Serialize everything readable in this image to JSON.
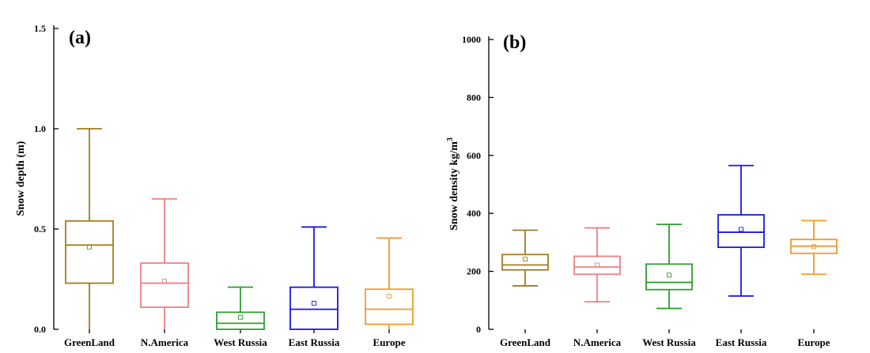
{
  "chart_data": [
    {
      "type": "box",
      "panel_label": "(a)",
      "ylabel": "Snow depth (m)",
      "ylim": [
        0,
        1.5
      ],
      "yticks": [
        "0.0",
        "0.5",
        "1.0",
        "1.5"
      ],
      "categories": [
        "GreenLand",
        "N.America",
        "West Russia",
        "East Russia",
        "Europe"
      ],
      "boxes": [
        {
          "category": "GreenLand",
          "whisker_low": 0.0,
          "q1": 0.23,
          "median": 0.42,
          "q3": 0.54,
          "whisker_high": 1.0,
          "mean": 0.41,
          "color": "#a07d1c"
        },
        {
          "category": "N.America",
          "whisker_low": 0.0,
          "q1": 0.11,
          "median": 0.23,
          "q3": 0.33,
          "whisker_high": 0.65,
          "mean": 0.24,
          "color": "#ee7f84"
        },
        {
          "category": "West Russia",
          "whisker_low": 0.0,
          "q1": 0.0,
          "median": 0.03,
          "q3": 0.085,
          "whisker_high": 0.21,
          "mean": 0.06,
          "color": "#2d9e2d"
        },
        {
          "category": "East Russia",
          "whisker_low": 0.0,
          "q1": 0.0,
          "median": 0.1,
          "q3": 0.21,
          "whisker_high": 0.51,
          "mean": 0.13,
          "color": "#1818e0"
        },
        {
          "category": "Europe",
          "whisker_low": 0.0,
          "q1": 0.025,
          "median": 0.1,
          "q3": 0.2,
          "whisker_high": 0.455,
          "mean": 0.165,
          "color": "#f39a2c"
        }
      ]
    },
    {
      "type": "box",
      "panel_label": "(b)",
      "ylabel": "Snow density kg/m",
      "ylabel_sup": "3",
      "ylim": [
        0,
        1000
      ],
      "yticks": [
        "0",
        "200",
        "400",
        "600",
        "800",
        "1000"
      ],
      "categories": [
        "GreenLand",
        "N.America",
        "West Russia",
        "East Russia",
        "Europe"
      ],
      "boxes": [
        {
          "category": "GreenLand",
          "whisker_low": 150,
          "q1": 205,
          "median": 222,
          "q3": 258,
          "whisker_high": 342,
          "mean": 242,
          "color": "#a07d1c"
        },
        {
          "category": "N.America",
          "whisker_low": 95,
          "q1": 190,
          "median": 215,
          "q3": 252,
          "whisker_high": 350,
          "mean": 222,
          "color": "#ee7f84"
        },
        {
          "category": "West Russia",
          "whisker_low": 72,
          "q1": 137,
          "median": 162,
          "q3": 225,
          "whisker_high": 362,
          "mean": 187,
          "color": "#2d9e2d"
        },
        {
          "category": "East Russia",
          "whisker_low": 115,
          "q1": 283,
          "median": 335,
          "q3": 395,
          "whisker_high": 565,
          "mean": 345,
          "color": "#1818e0"
        },
        {
          "category": "Europe",
          "whisker_low": 190,
          "q1": 262,
          "median": 287,
          "q3": 310,
          "whisker_high": 375,
          "mean": 285,
          "color": "#f39a2c"
        }
      ]
    }
  ]
}
